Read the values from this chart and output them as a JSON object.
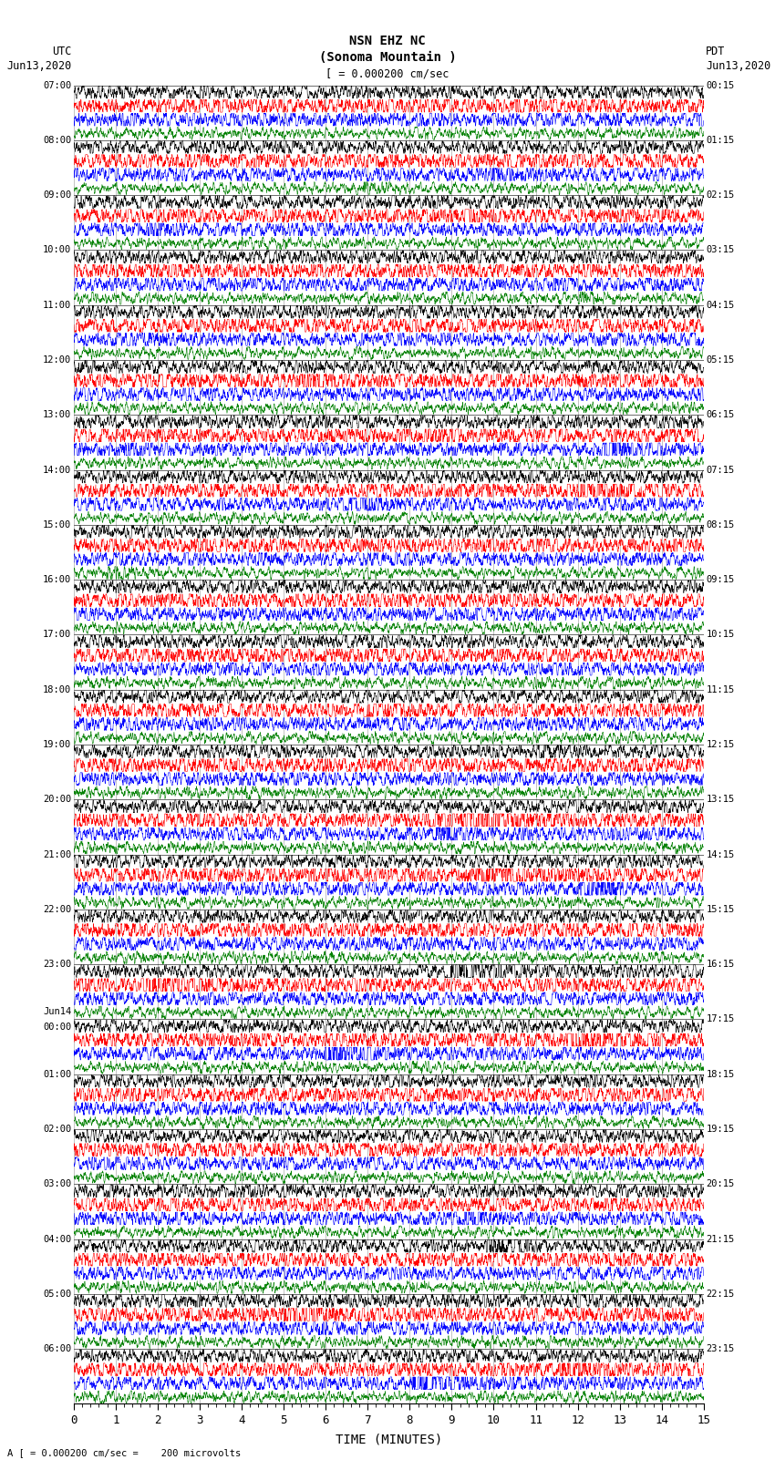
{
  "title_line1": "NSN EHZ NC",
  "title_line2": "(Sonoma Mountain )",
  "scale_label": "[ = 0.000200 cm/sec",
  "left_label": "UTC",
  "left_date": "Jun13,2020",
  "right_label": "PDT",
  "right_date": "Jun13,2020",
  "xlabel": "TIME (MINUTES)",
  "footnote": "A [ = 0.000200 cm/sec =    200 microvolts",
  "utc_times": [
    "07:00",
    "08:00",
    "09:00",
    "10:00",
    "11:00",
    "12:00",
    "13:00",
    "14:00",
    "15:00",
    "16:00",
    "17:00",
    "18:00",
    "19:00",
    "20:00",
    "21:00",
    "22:00",
    "23:00",
    "Jun14\n00:00",
    "01:00",
    "02:00",
    "03:00",
    "04:00",
    "05:00",
    "06:00"
  ],
  "pdt_times": [
    "00:15",
    "01:15",
    "02:15",
    "03:15",
    "04:15",
    "05:15",
    "06:15",
    "07:15",
    "08:15",
    "09:15",
    "10:15",
    "11:15",
    "12:15",
    "13:15",
    "14:15",
    "15:15",
    "16:15",
    "17:15",
    "18:15",
    "19:15",
    "20:15",
    "21:15",
    "22:15",
    "23:15"
  ],
  "n_rows": 24,
  "n_traces": 4,
  "colors": [
    "black",
    "red",
    "blue",
    "green"
  ],
  "bg_color": "white",
  "n_minutes": 15,
  "samples_per_minute": 200,
  "noise_base": 0.28,
  "figsize": [
    8.5,
    16.13
  ],
  "dpi": 100,
  "vline_color": "#888888",
  "vline_alpha": 0.7
}
